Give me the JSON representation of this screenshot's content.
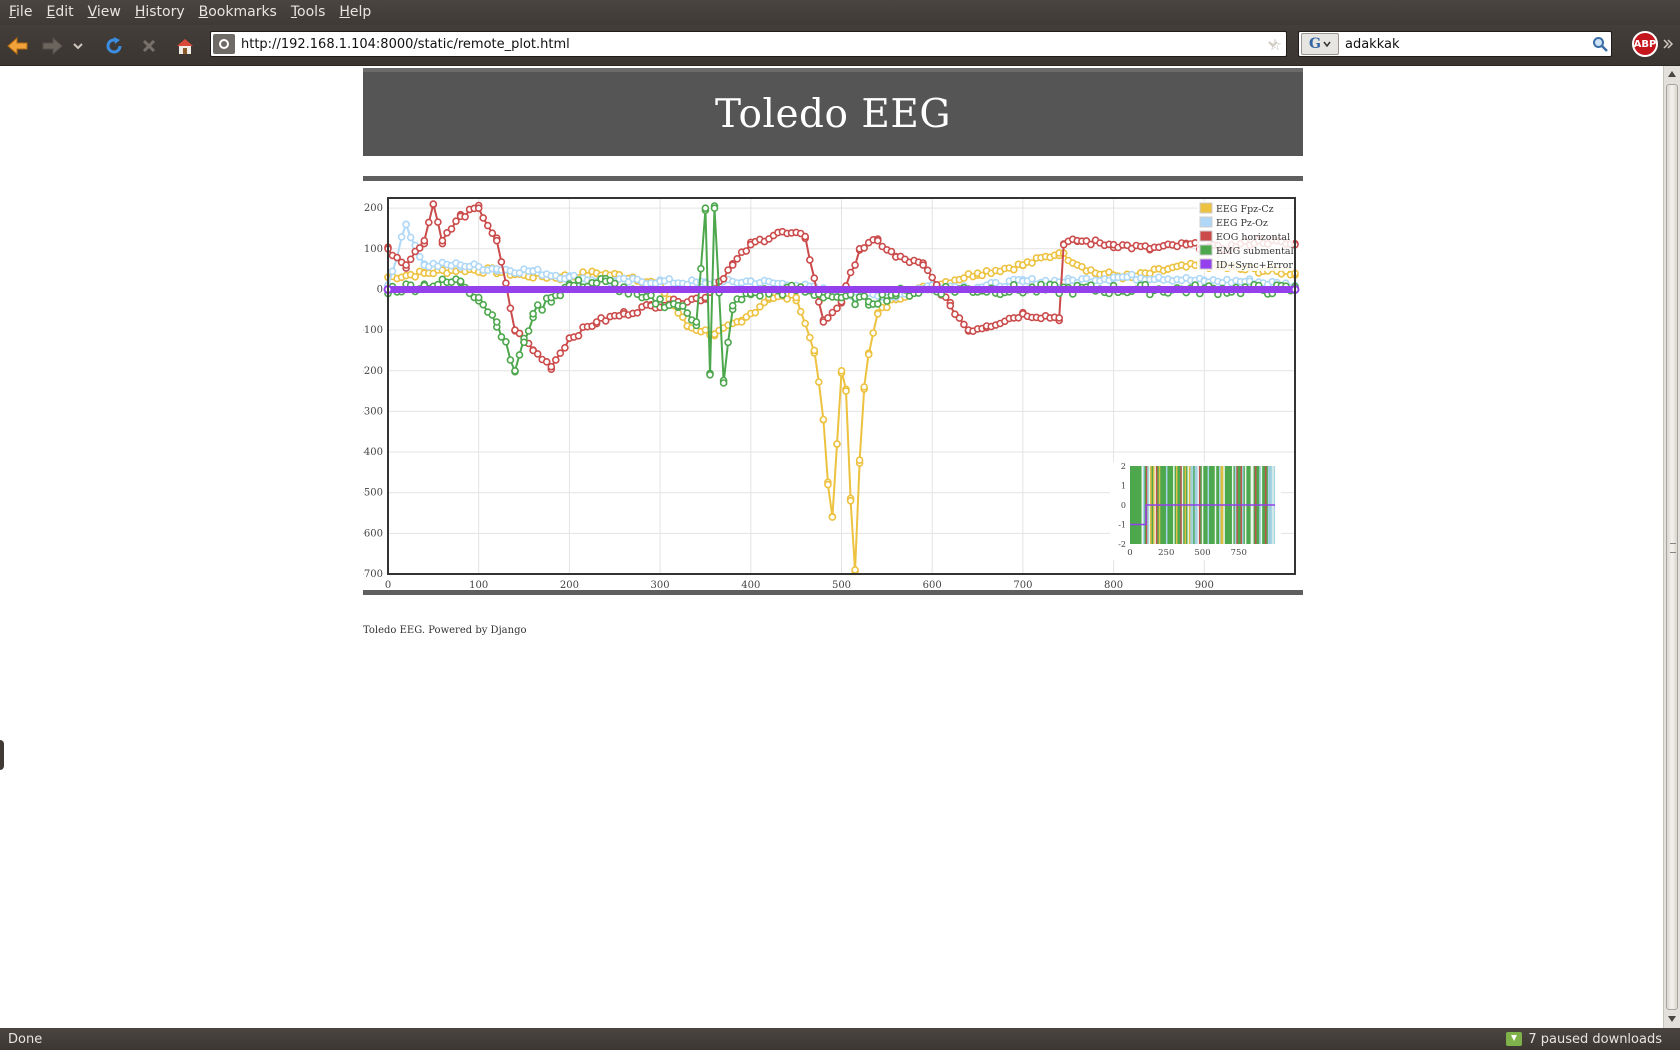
{
  "browser": {
    "menus": [
      {
        "id": "file",
        "label": "File",
        "accel": "F",
        "rest": "ile"
      },
      {
        "id": "edit",
        "label": "Edit",
        "accel": "E",
        "rest": "dit"
      },
      {
        "id": "view",
        "label": "View",
        "accel": "V",
        "rest": "iew"
      },
      {
        "id": "history",
        "label": "History",
        "accel": "H",
        "rest": "istory"
      },
      {
        "id": "bookmarks",
        "label": "Bookmarks",
        "accel": "B",
        "rest": "ookmarks"
      },
      {
        "id": "tools",
        "label": "Tools",
        "accel": "T",
        "rest": "ools"
      },
      {
        "id": "help",
        "label": "Help",
        "accel": "H",
        "rest": "elp"
      }
    ],
    "url": "http://192.168.1.104:8000/static/remote_plot.html",
    "search_value": "adakkak",
    "search_engine": "G",
    "adblock_label": "ABP",
    "status_text": "Done",
    "downloads_text": "7 paused downloads",
    "accent_colors": {
      "chrome": "#433e39",
      "adblock": "#c4161c"
    }
  },
  "page": {
    "title": "Toledo EEG",
    "footer": "Toledo EEG. Powered by Django"
  },
  "chart_data": {
    "type": "line",
    "title": "",
    "xlabel": "",
    "ylabel": "",
    "xlim": [
      0,
      1000
    ],
    "ylim": [
      -700,
      225
    ],
    "x_ticks": [
      0,
      100,
      200,
      300,
      400,
      500,
      600,
      700,
      800,
      900
    ],
    "y_ticks": [
      200,
      100,
      0,
      -100,
      -200,
      -300,
      -400,
      -500,
      -600,
      -700
    ],
    "grid": true,
    "legend_position": "top-right",
    "series": [
      {
        "name": "EEG Fpz-Cz",
        "color": "#edc240",
        "x": [
          0,
          40,
          80,
          120,
          150,
          190,
          230,
          270,
          300,
          330,
          360,
          390,
          420,
          450,
          470,
          480,
          485,
          490,
          495,
          500,
          505,
          510,
          515,
          520,
          525,
          530,
          540,
          560,
          600,
          650,
          700,
          740,
          780,
          820,
          860,
          900,
          940,
          980,
          1000
        ],
        "y": [
          30,
          40,
          50,
          45,
          35,
          30,
          40,
          30,
          10,
          -90,
          -110,
          -80,
          -20,
          -20,
          -150,
          -320,
          -480,
          -560,
          -380,
          -200,
          -250,
          -520,
          -690,
          -420,
          -240,
          -160,
          -60,
          -20,
          10,
          40,
          60,
          90,
          40,
          30,
          50,
          60,
          50,
          45,
          40
        ]
      },
      {
        "name": "EEG Pz-Oz",
        "color": "#afd8f8",
        "x": [
          0,
          20,
          40,
          80,
          120,
          160,
          200,
          250,
          300,
          350,
          400,
          450,
          500,
          550,
          600,
          650,
          700,
          750,
          800,
          850,
          900,
          950,
          1000
        ],
        "y": [
          10,
          160,
          60,
          60,
          50,
          45,
          30,
          20,
          20,
          15,
          20,
          10,
          -10,
          -20,
          10,
          5,
          20,
          20,
          30,
          30,
          20,
          20,
          10
        ]
      },
      {
        "name": "EOG horizontal",
        "color": "#cb4b4b",
        "x": [
          0,
          20,
          40,
          50,
          60,
          80,
          100,
          120,
          140,
          160,
          180,
          200,
          230,
          260,
          290,
          320,
          350,
          380,
          400,
          430,
          460,
          480,
          500,
          520,
          540,
          560,
          590,
          620,
          640,
          660,
          700,
          740,
          745,
          760,
          800,
          840,
          880,
          920,
          960,
          1000
        ],
        "y": [
          100,
          60,
          120,
          210,
          120,
          180,
          200,
          120,
          -100,
          -150,
          -190,
          -120,
          -80,
          -60,
          -40,
          -30,
          -20,
          60,
          110,
          140,
          130,
          -80,
          -30,
          100,
          120,
          80,
          60,
          -40,
          -100,
          -90,
          -60,
          -70,
          110,
          120,
          110,
          100,
          110,
          100,
          120,
          110
        ]
      },
      {
        "name": "EMG submental",
        "color": "#4da74d",
        "x": [
          0,
          40,
          80,
          100,
          120,
          140,
          150,
          160,
          180,
          200,
          240,
          280,
          320,
          340,
          350,
          355,
          360,
          370,
          380,
          400,
          450,
          500,
          530,
          560,
          600,
          650,
          700,
          800,
          900,
          1000
        ],
        "y": [
          0,
          10,
          20,
          -20,
          -80,
          -200,
          -130,
          -60,
          -20,
          10,
          20,
          -20,
          -40,
          -80,
          200,
          -210,
          200,
          -230,
          -40,
          -10,
          0,
          -20,
          -30,
          -10,
          0,
          0,
          0,
          0,
          0,
          0
        ]
      },
      {
        "name": "ID+Sync+Error",
        "color": "#9440ed",
        "x": [
          0,
          1000
        ],
        "y": [
          0,
          0
        ]
      }
    ],
    "overview": {
      "type": "area",
      "xlim": [
        0,
        1000
      ],
      "ylim": [
        -2,
        2
      ],
      "x_ticks": [
        0,
        250,
        500,
        750
      ],
      "y_ticks": [
        2,
        1,
        0,
        -1,
        -2
      ]
    }
  }
}
